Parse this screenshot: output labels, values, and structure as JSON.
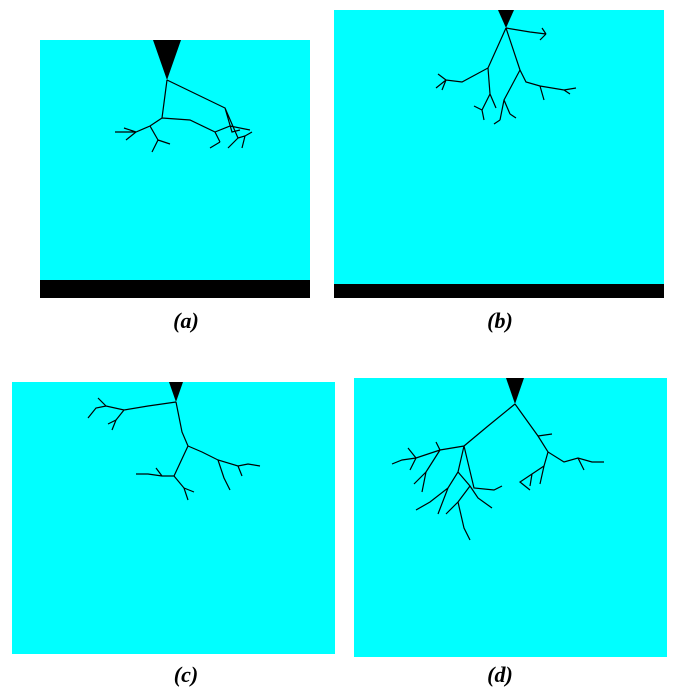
{
  "colors": {
    "background": "#00ffff",
    "branch": "#000000",
    "electrode": "#000000",
    "ground_plate": "#000000"
  },
  "panels": [
    {
      "id": "a",
      "caption": "(a)",
      "has_ground_plate": true
    },
    {
      "id": "b",
      "caption": "(b)",
      "has_ground_plate": true
    },
    {
      "id": "c",
      "caption": "(c)",
      "has_ground_plate": false
    },
    {
      "id": "d",
      "caption": "(d)",
      "has_ground_plate": false
    }
  ]
}
